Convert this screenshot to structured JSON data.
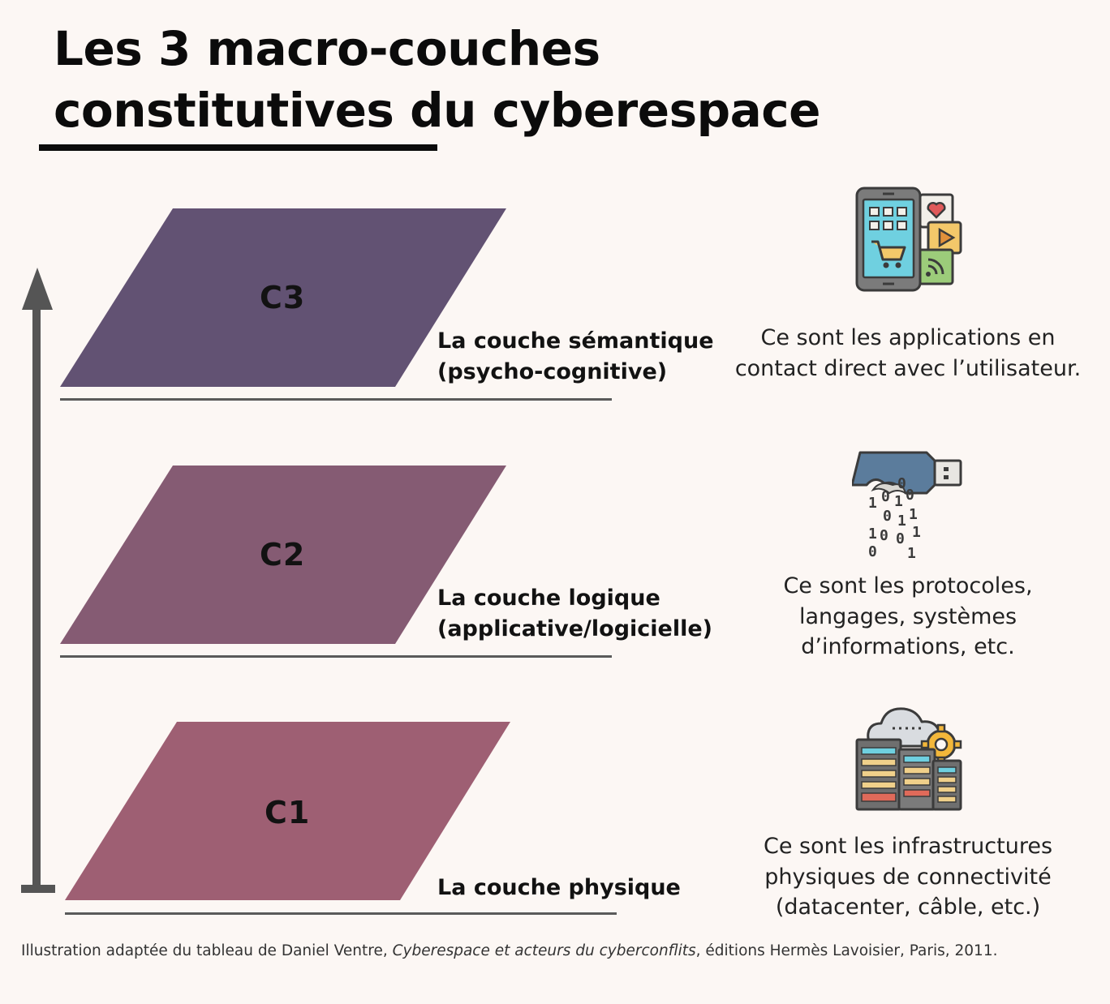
{
  "title": {
    "line1": "Les 3 macro-couches",
    "line2": "constitutives du cyberespace"
  },
  "layers": [
    {
      "code": "C3",
      "name_line1": "La couche sémantique",
      "name_line2": "(psycho-cognitive)",
      "description_lines": [
        "Ce sont les applications en",
        "contact direct avec l’utilisateur."
      ],
      "color": "#625273",
      "icon": "mobile-apps-icon"
    },
    {
      "code": "C2",
      "name_line1": "La couche logique",
      "name_line2": "(applicative/logicielle)",
      "description_lines": [
        "Ce sont les protocoles,",
        "langages, systèmes",
        "d’informations, etc."
      ],
      "color": "#855b73",
      "icon": "usb-binary-data-icon"
    },
    {
      "code": "C1",
      "name_line1": "La couche physique",
      "name_line2": "",
      "description_lines": [
        "Ce sont les infrastructures",
        "physiques de connectivité",
        "(datacenter, câble, etc.)"
      ],
      "color": "#9e5f73",
      "icon": "datacenter-cloud-icon"
    }
  ],
  "footer": {
    "prefix": "Illustration adaptée du tableau de Daniel Ventre, ",
    "work_title": "Cyberespace et acteurs du cyberconflits",
    "suffix": ", éditions Hermès Lavoisier, Paris, 2011."
  }
}
